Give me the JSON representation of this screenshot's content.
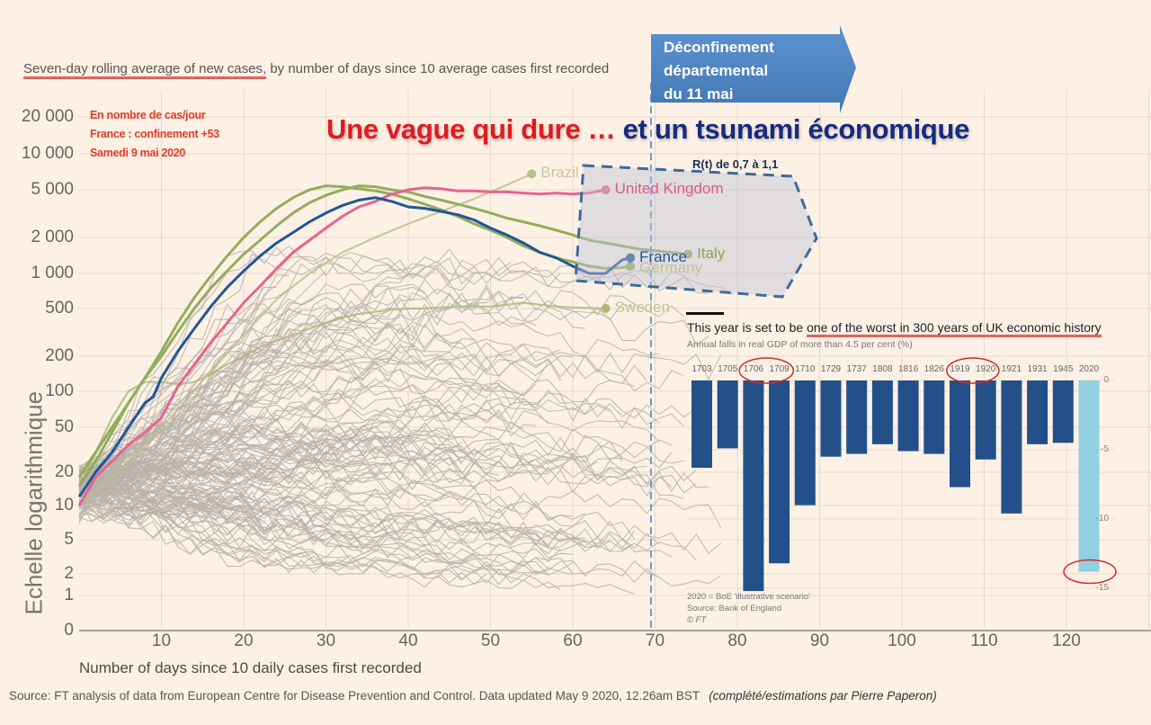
{
  "headline": {
    "part1": "Une vague qui dure …",
    "part2": " et un tsunami économique"
  },
  "subtitle": {
    "underlined": "Seven-day rolling average of new cases,",
    "rest": " by number of days since 10 average cases first recorded"
  },
  "annotation": {
    "lines": [
      "En nombre de cas/jour",
      "France : confinement +53",
      "Samedi 9 mai 2020"
    ]
  },
  "callout_arrow": {
    "lines": [
      "Déconfinement",
      "départemental",
      "du 11 mai"
    ],
    "color": "#4f87c4"
  },
  "rt_box": {
    "label": "R(t) de 0,7 à 1,1"
  },
  "footer": {
    "source": "Source: FT analysis of data from European Centre for Disease Prevention and Control. Data updated May 9 2020, 12.26am BST",
    "credit": "(complété/estimations par Pierre Paperon)"
  },
  "chart_data": [
    {
      "type": "line",
      "title": "Seven-day rolling average of new cases, by number of days since 10 average cases first recorded",
      "xlabel": "Number of days since 10 daily cases first recorded",
      "ylabel": "Echelle logarithmique",
      "yscale": "log",
      "xlim": [
        0,
        130
      ],
      "ylim": [
        0,
        20000
      ],
      "x_ticks": [
        "10",
        "20",
        "30",
        "40",
        "50",
        "60",
        "70",
        "80",
        "90",
        "100",
        "110",
        "120"
      ],
      "y_ticks": [
        "20 000",
        "10 000",
        "5 000",
        "2 000",
        "1 000",
        "500",
        "200",
        "100",
        "50",
        "20",
        "10",
        "5",
        "2",
        "1",
        "0"
      ],
      "y_tick_values": [
        20000,
        10000,
        5000,
        2000,
        1000,
        500,
        200,
        100,
        50,
        20,
        10,
        5,
        2,
        1,
        0
      ],
      "grid": true,
      "reference_line": {
        "x": 69.5,
        "label": "Déconfinement départemental du 11 mai"
      },
      "highlighted_series": [
        {
          "name": "United Kingdom",
          "color": "#e8638f",
          "x": [
            0,
            2,
            4,
            6,
            8,
            10,
            12,
            14,
            16,
            18,
            20,
            22,
            24,
            26,
            28,
            30,
            32,
            34,
            36,
            38,
            40,
            42,
            44,
            46,
            48,
            50,
            52,
            54,
            56,
            58,
            60,
            62,
            64
          ],
          "y": [
            10,
            18,
            25,
            35,
            45,
            60,
            110,
            170,
            260,
            380,
            560,
            780,
            1100,
            1500,
            1900,
            2400,
            3000,
            3600,
            4000,
            4600,
            5000,
            5200,
            5100,
            4900,
            4900,
            4800,
            4800,
            4700,
            4600,
            4700,
            4600,
            4700,
            5000
          ]
        },
        {
          "name": "France",
          "color": "#1f5797",
          "x": [
            0,
            2,
            4,
            6,
            8,
            9,
            10,
            12,
            14,
            16,
            18,
            20,
            22,
            24,
            26,
            28,
            30,
            32,
            34,
            36,
            38,
            40,
            42,
            44,
            46,
            48,
            50,
            52,
            54,
            56,
            58,
            60,
            62,
            64,
            66,
            67
          ],
          "y": [
            12,
            20,
            30,
            50,
            80,
            90,
            130,
            220,
            340,
            520,
            760,
            1050,
            1400,
            1800,
            2200,
            2700,
            3200,
            3700,
            4100,
            4300,
            4000,
            3600,
            3500,
            3300,
            3100,
            2800,
            2400,
            2100,
            1800,
            1500,
            1350,
            1150,
            1000,
            1000,
            1300,
            1350
          ]
        },
        {
          "name": "Italy",
          "color": "#93ad5c",
          "x": [
            0,
            2,
            4,
            6,
            8,
            10,
            12,
            14,
            16,
            18,
            20,
            22,
            24,
            26,
            28,
            30,
            32,
            34,
            36,
            38,
            40,
            42,
            44,
            46,
            48,
            50,
            52,
            54,
            56,
            58,
            60,
            62,
            64,
            66,
            68,
            70,
            72,
            74
          ],
          "y": [
            18,
            30,
            50,
            80,
            130,
            200,
            320,
            500,
            750,
            1050,
            1450,
            1900,
            2500,
            3200,
            3900,
            4500,
            5000,
            5400,
            5300,
            5000,
            4800,
            4400,
            4100,
            3800,
            3500,
            3200,
            2900,
            2700,
            2500,
            2300,
            2100,
            1900,
            1800,
            1700,
            1600,
            1550,
            1500,
            1450
          ]
        },
        {
          "name": "Germany",
          "color": "#93ad5c",
          "x": [
            0,
            2,
            4,
            6,
            8,
            10,
            12,
            14,
            16,
            18,
            20,
            22,
            24,
            26,
            28,
            30,
            32,
            34,
            36,
            38,
            40,
            42,
            44,
            46,
            48,
            50,
            52,
            54,
            56,
            58,
            60,
            62,
            64,
            66,
            67
          ],
          "y": [
            15,
            25,
            45,
            80,
            130,
            220,
            380,
            620,
            950,
            1400,
            2000,
            2700,
            3500,
            4300,
            5000,
            5400,
            5300,
            5100,
            4900,
            4600,
            4200,
            3800,
            3400,
            3000,
            2600,
            2300,
            2000,
            1700,
            1500,
            1350,
            1250,
            1150,
            1100,
            1120,
            1150
          ]
        },
        {
          "name": "Brazil",
          "color": "#b9bf8a",
          "x": [
            0,
            4,
            8,
            12,
            16,
            20,
            24,
            28,
            32,
            36,
            40,
            44,
            48,
            52,
            55
          ],
          "y": [
            10,
            18,
            35,
            70,
            150,
            300,
            600,
            1000,
            1500,
            2000,
            2600,
            3300,
            4200,
            5500,
            6800
          ]
        },
        {
          "name": "Sweden",
          "color": "#a9b878",
          "x": [
            0,
            2,
            4,
            6,
            8,
            10,
            12,
            14,
            16,
            18,
            20,
            22,
            24,
            26,
            28,
            30,
            32,
            34,
            36,
            38,
            40,
            42,
            44,
            46,
            48,
            50,
            52,
            54,
            56,
            58,
            60,
            62,
            64
          ],
          "y": [
            15,
            30,
            60,
            100,
            120,
            120,
            115,
            120,
            140,
            170,
            200,
            240,
            270,
            300,
            340,
            380,
            420,
            450,
            470,
            490,
            500,
            500,
            510,
            520,
            520,
            520,
            540,
            560,
            540,
            520,
            510,
            505,
            500
          ]
        }
      ],
      "background_series_note": "About 150 other countries drawn as thin grey lines (#b9b2ab)"
    },
    {
      "type": "bar",
      "title": "This year is set to be one of the worst in 300 years of UK economic history",
      "title_underlined": "one of the worst in 300 years of UK economic history",
      "subtitle": "Annual falls in real GDP of more than 4.5 per cent (%)",
      "categories": [
        "1703",
        "1705",
        "1706",
        "1709",
        "1710",
        "1729",
        "1737",
        "1808",
        "1816",
        "1826",
        "1919",
        "1920",
        "1921",
        "1931",
        "1945",
        "2020"
      ],
      "values": [
        -6.3,
        -4.9,
        -15.2,
        -13.2,
        -9.0,
        -5.5,
        -5.3,
        -4.6,
        -5.1,
        -5.3,
        -7.7,
        -5.7,
        -9.6,
        -4.6,
        -4.5,
        -13.8
      ],
      "highlight": "2020",
      "circled": [
        [
          "1706",
          "1709"
        ],
        [
          "1919",
          "1920"
        ],
        [
          "2020 value"
        ]
      ],
      "colors": {
        "bar": "#235088",
        "highlight": "#93cfe3",
        "circle": "#cf2c2c"
      },
      "ylim": [
        -15,
        0
      ],
      "y_ticks": [
        "0",
        "-5",
        "-10",
        "-15"
      ],
      "y_tick_values": [
        0,
        -5,
        -10,
        -15
      ],
      "notes": [
        "2020 = BoE 'illustrative scenario'",
        "Source: Bank of England",
        "© FT"
      ]
    }
  ]
}
